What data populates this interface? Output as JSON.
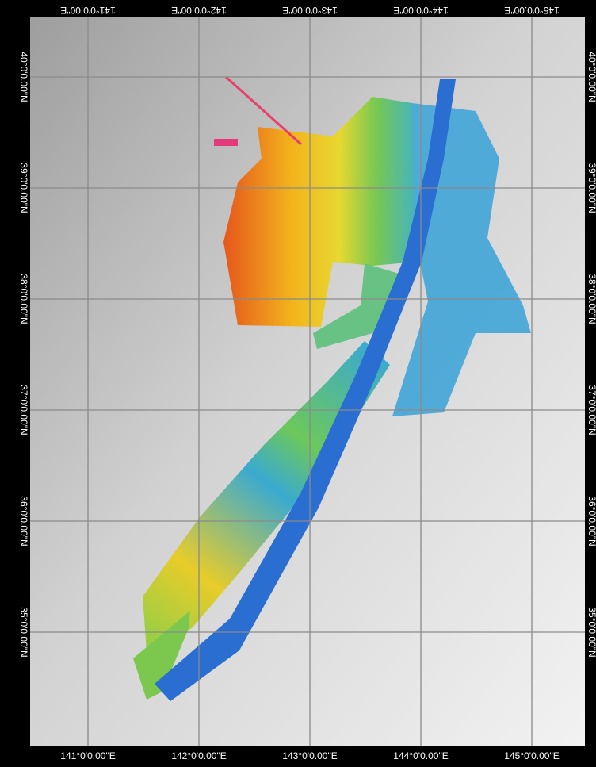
{
  "map": {
    "longitude_labels": [
      "141°0'0.00\"E",
      "142°0'0.00\"E",
      "143°0'0.00\"E",
      "144°0'0.00\"E",
      "145°0'0.00\"E"
    ],
    "latitude_labels": [
      "40°0'0.00\"N",
      "39°0'0.00\"N",
      "38°0'0.00\"N",
      "37°0'0.00\"N",
      "36°0'0.00\"N",
      "35°0'0.00\"N"
    ]
  }
}
